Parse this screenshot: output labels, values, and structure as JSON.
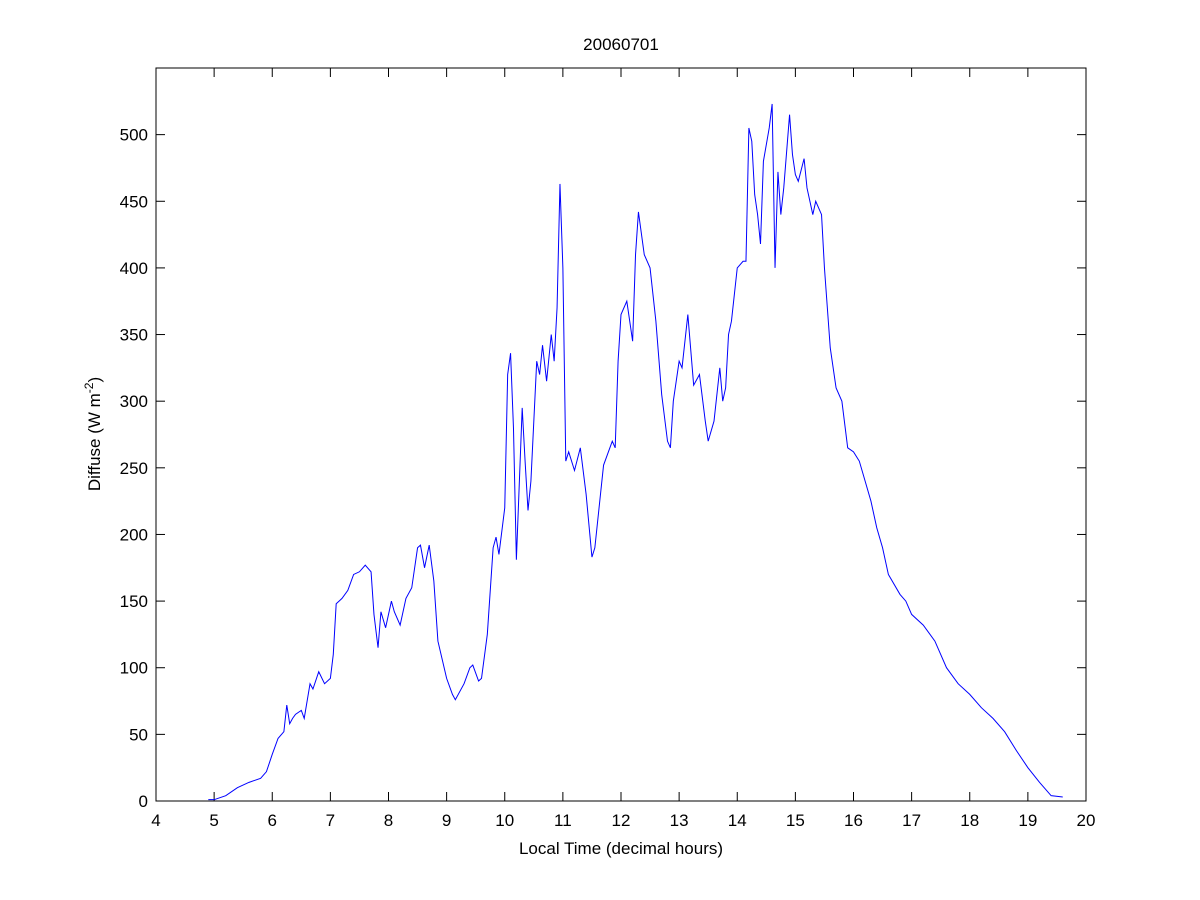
{
  "chart_data": {
    "type": "line",
    "title": "20060701",
    "xlabel": "Local Time (decimal hours)",
    "ylabel": {
      "text": "Diffuse (W m",
      "sup": "-2",
      "suffix": ")"
    },
    "xlim": [
      4,
      20
    ],
    "xticks": [
      4,
      5,
      6,
      7,
      8,
      9,
      10,
      11,
      12,
      13,
      14,
      15,
      16,
      17,
      18,
      19,
      20
    ],
    "ylim": [
      0,
      550
    ],
    "yticks": [
      0,
      50,
      100,
      150,
      200,
      250,
      300,
      350,
      400,
      450,
      500
    ],
    "grid": false,
    "series": [
      {
        "color": "#0000ff",
        "x": [
          4.9,
          5.0,
          5.2,
          5.4,
          5.6,
          5.8,
          5.9,
          6.0,
          6.1,
          6.2,
          6.25,
          6.3,
          6.35,
          6.4,
          6.5,
          6.55,
          6.65,
          6.7,
          6.8,
          6.9,
          7.0,
          7.05,
          7.1,
          7.15,
          7.2,
          7.3,
          7.4,
          7.5,
          7.6,
          7.7,
          7.75,
          7.82,
          7.87,
          7.95,
          8.05,
          8.1,
          8.2,
          8.3,
          8.4,
          8.5,
          8.55,
          8.62,
          8.7,
          8.78,
          8.85,
          9.0,
          9.1,
          9.15,
          9.3,
          9.4,
          9.45,
          9.55,
          9.6,
          9.7,
          9.8,
          9.85,
          9.9,
          10.0,
          10.05,
          10.1,
          10.15,
          10.2,
          10.3,
          10.35,
          10.4,
          10.45,
          10.55,
          10.6,
          10.65,
          10.72,
          10.8,
          10.85,
          10.9,
          10.95,
          11.0,
          11.05,
          11.1,
          11.2,
          11.3,
          11.4,
          11.5,
          11.55,
          11.7,
          11.85,
          11.9,
          11.95,
          12.0,
          12.1,
          12.2,
          12.25,
          12.3,
          12.4,
          12.5,
          12.6,
          12.7,
          12.8,
          12.85,
          12.9,
          13.0,
          13.05,
          13.15,
          13.25,
          13.35,
          13.45,
          13.5,
          13.6,
          13.7,
          13.75,
          13.8,
          13.85,
          13.9,
          14.0,
          14.1,
          14.15,
          14.2,
          14.25,
          14.3,
          14.35,
          14.4,
          14.45,
          14.55,
          14.6,
          14.65,
          14.7,
          14.75,
          14.8,
          14.9,
          14.95,
          15.0,
          15.05,
          15.15,
          15.2,
          15.3,
          15.35,
          15.45,
          15.5,
          15.6,
          15.7,
          15.8,
          15.9,
          16.0,
          16.1,
          16.2,
          16.3,
          16.4,
          16.5,
          16.6,
          16.8,
          16.9,
          17.0,
          17.2,
          17.4,
          17.6,
          17.8,
          18.0,
          18.2,
          18.4,
          18.6,
          18.8,
          19.0,
          19.2,
          19.4,
          19.6
        ],
        "values": [
          1,
          1,
          4,
          10,
          14,
          17,
          22,
          35,
          47,
          52,
          72,
          58,
          62,
          65,
          68,
          62,
          88,
          84,
          97,
          88,
          92,
          110,
          148,
          150,
          152,
          158,
          170,
          172,
          177,
          172,
          140,
          115,
          142,
          130,
          150,
          142,
          132,
          152,
          160,
          190,
          192,
          175,
          192,
          165,
          120,
          92,
          80,
          76,
          88,
          100,
          102,
          90,
          92,
          125,
          190,
          198,
          185,
          220,
          320,
          336,
          280,
          181,
          295,
          255,
          218,
          240,
          330,
          320,
          342,
          315,
          350,
          330,
          370,
          463,
          400,
          255,
          262,
          248,
          265,
          230,
          183,
          190,
          252,
          270,
          265,
          330,
          365,
          375,
          345,
          410,
          442,
          410,
          400,
          360,
          305,
          270,
          265,
          300,
          330,
          325,
          365,
          312,
          320,
          285,
          270,
          285,
          325,
          300,
          310,
          350,
          360,
          400,
          405,
          405,
          505,
          495,
          455,
          440,
          418,
          480,
          505,
          523,
          400,
          472,
          440,
          460,
          515,
          485,
          470,
          465,
          482,
          460,
          440,
          450,
          440,
          400,
          340,
          310,
          300,
          265,
          262,
          255,
          240,
          225,
          205,
          190,
          170,
          155,
          150,
          140,
          132,
          120,
          100,
          88,
          80,
          70,
          62,
          52,
          38,
          25,
          14,
          4,
          3
        ]
      }
    ]
  }
}
